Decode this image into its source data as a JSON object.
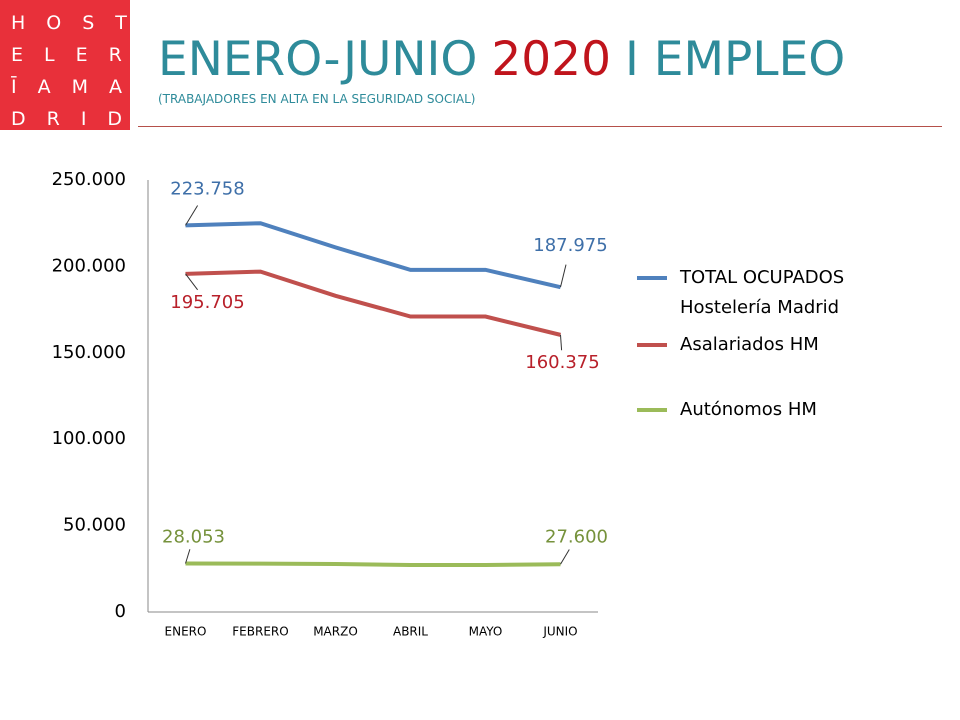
{
  "header": {
    "logo": [
      "HOST",
      "ELER",
      "ĪAMA",
      "DRID"
    ],
    "title": [
      "ENERO-JUNIO",
      "2020",
      "I EMPLEO"
    ],
    "subtitle": "(TRABAJADORES EN ALTA EN LA SEGURIDAD SOCIAL)"
  },
  "chart_data": {
    "type": "line",
    "categories": [
      "ENERO",
      "FEBRERO",
      "MARZO",
      "ABRIL",
      "MAYO",
      "JUNIO"
    ],
    "series": [
      {
        "name": "TOTAL OCUPADOS Hostelería Madrid",
        "color": "#4f81bd",
        "values": [
          223758,
          225000,
          211000,
          198000,
          198000,
          187975
        ],
        "value_labels": [
          "223.758",
          null,
          null,
          null,
          null,
          "187.975"
        ]
      },
      {
        "name": "Asalariados HM",
        "color": "#c0504d",
        "values": [
          195705,
          197000,
          183000,
          171000,
          171000,
          160375
        ],
        "value_labels": [
          "195.705",
          null,
          null,
          null,
          null,
          "160.375"
        ]
      },
      {
        "name": "Autónomos HM",
        "color": "#9bbb59",
        "values": [
          28053,
          28000,
          27800,
          27200,
          27200,
          27600
        ],
        "value_labels": [
          "28.053",
          null,
          null,
          null,
          null,
          "27.600"
        ]
      }
    ],
    "ylim": [
      0,
      250000
    ],
    "yticks": [
      0,
      {
        "value": 50000,
        "label": "50.000"
      },
      {
        "value": 100000,
        "label": "100.000"
      },
      {
        "value": 150000,
        "label": "150.000"
      },
      {
        "value": 200000,
        "label": "200.000"
      },
      {
        "value": 250000,
        "label": "250.000"
      }
    ],
    "grid": false,
    "legend": "right"
  }
}
